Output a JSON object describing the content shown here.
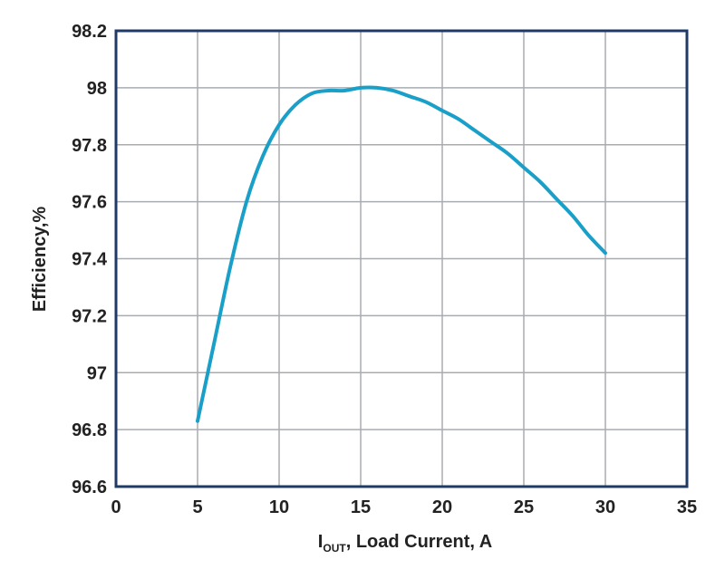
{
  "chart_data": {
    "type": "line",
    "title": "",
    "xlabel": {
      "main": "I",
      "sub": "OUT",
      "rest": ", Load Current, A"
    },
    "ylabel": "Efficiency,%",
    "xlim": [
      0,
      35
    ],
    "ylim": [
      96.6,
      98.2
    ],
    "xticks": [
      0,
      5,
      10,
      15,
      20,
      25,
      30,
      35
    ],
    "yticks": [
      96.6,
      96.8,
      97,
      97.2,
      97.4,
      97.6,
      97.8,
      98,
      98.2
    ],
    "xtick_labels": [
      "0",
      "5",
      "10",
      "15",
      "20",
      "25",
      "30",
      "35"
    ],
    "ytick_labels": [
      "96.6",
      "96.8",
      "97",
      "97.2",
      "97.4",
      "97.6",
      "97.8",
      "98",
      "98.2"
    ],
    "grid": true,
    "line_color": "#1aa0c8",
    "series": [
      {
        "x": [
          5,
          6,
          7,
          8,
          9,
          10,
          11,
          12,
          13,
          14,
          15,
          16,
          17,
          18,
          19,
          20,
          21,
          22,
          23,
          24,
          25,
          26,
          27,
          28,
          29,
          30
        ],
        "y": [
          96.83,
          97.1,
          97.37,
          97.6,
          97.76,
          97.87,
          97.94,
          97.98,
          97.99,
          97.99,
          98.0,
          98.0,
          97.99,
          97.97,
          97.95,
          97.92,
          97.89,
          97.85,
          97.81,
          97.77,
          97.72,
          97.67,
          97.61,
          97.55,
          97.48,
          97.42
        ]
      }
    ]
  }
}
